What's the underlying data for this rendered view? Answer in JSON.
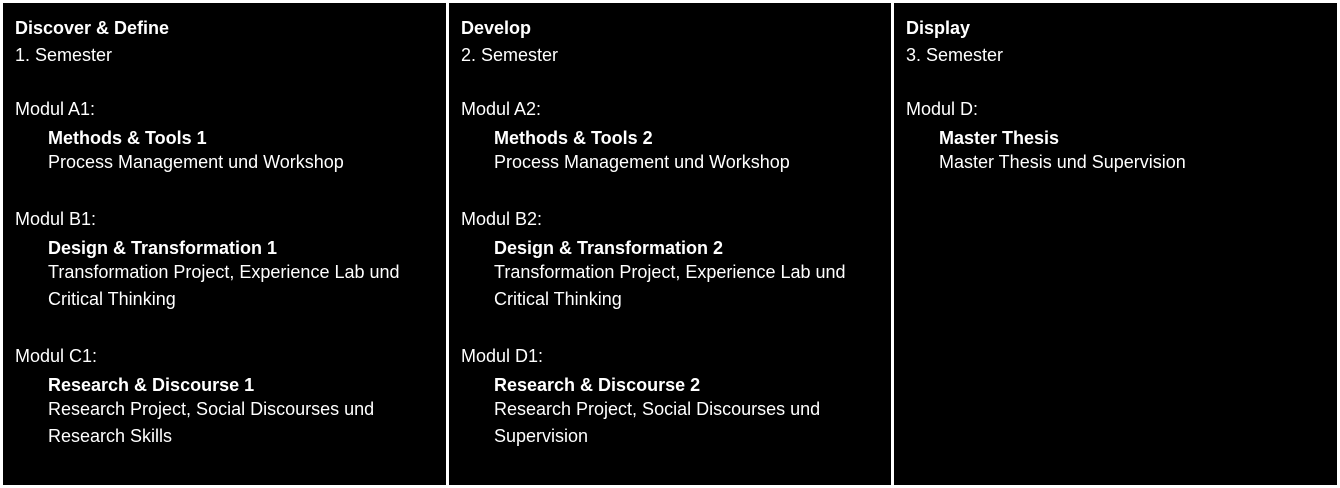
{
  "columns": [
    {
      "title": "Discover & Define",
      "semester": "1. Semester",
      "modules": [
        {
          "label": "Modul A1:",
          "name": "Methods & Tools 1",
          "desc": "Process Management und Workshop"
        },
        {
          "label": "Modul B1:",
          "name": "Design & Transformation 1",
          "desc": "Transformation Project, Experience Lab und Critical Thinking"
        },
        {
          "label": "Modul C1:",
          "name": "Research & Discourse 1",
          "desc": "Research Project, Social Discourses und Research Skills"
        }
      ]
    },
    {
      "title": "Develop",
      "semester": "2. Semester",
      "modules": [
        {
          "label": "Modul A2:",
          "name": "Methods & Tools 2",
          "desc": "Process Management und Workshop"
        },
        {
          "label": "Modul B2:",
          "name": "Design & Transformation 2",
          "desc": "Transformation Project, Experience Lab und Critical Thinking"
        },
        {
          "label": "Modul D1:",
          "name": "Research & Discourse 2",
          "desc": "Research Project, Social Discourses und Supervision"
        }
      ]
    },
    {
      "title": "Display",
      "semester": "3. Semester",
      "modules": [
        {
          "label": "Modul D:",
          "name": "Master Thesis",
          "desc": "Master Thesis und Supervision"
        }
      ]
    }
  ]
}
